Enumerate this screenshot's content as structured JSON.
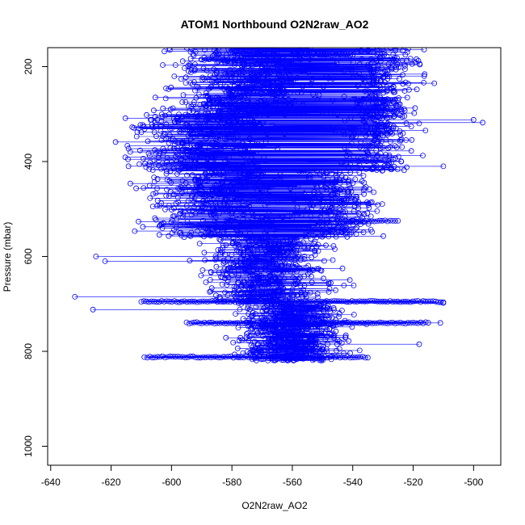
{
  "chart_data": {
    "type": "scatter",
    "title": "ATOM1 Northbound O2N2raw_AO2",
    "xlabel": "O2N2raw_AO2",
    "ylabel": "Pressure (mbar)",
    "xlim": [
      -641,
      -491
    ],
    "ylim": [
      1040,
      160
    ],
    "y_reversed": true,
    "grid": false,
    "legend": "none",
    "x_ticks": [
      -640,
      -620,
      -600,
      -580,
      -560,
      -540,
      -520,
      -500
    ],
    "y_ticks": [
      200,
      400,
      600,
      800,
      1000
    ],
    "series": [
      {
        "color": "#0000ff",
        "marker": "open-circle",
        "line": true,
        "clusters": [
          {
            "y_range": [
              160,
              300
            ],
            "x_center": -575,
            "x_spread": 22,
            "count": 520
          },
          {
            "y_range": [
              160,
              300
            ],
            "x_center": -530,
            "x_spread": 10,
            "count": 220
          },
          {
            "y_range": [
              300,
              420
            ],
            "x_center": -590,
            "x_spread": 22,
            "count": 360
          },
          {
            "y_range": [
              300,
              420
            ],
            "x_center": -532,
            "x_spread": 10,
            "count": 200
          },
          {
            "y_range": [
              420,
              560
            ],
            "x_center": -585,
            "x_spread": 20,
            "count": 380
          },
          {
            "y_range": [
              420,
              560
            ],
            "x_center": -545,
            "x_spread": 12,
            "count": 240
          },
          {
            "y_range": [
              560,
              700
            ],
            "x_center": -568,
            "x_spread": 18,
            "count": 520
          },
          {
            "y_range": [
              700,
              820
            ],
            "x_center": -560,
            "x_spread": 15,
            "count": 620
          }
        ],
        "horizontal_bands": [
          {
            "y": 695,
            "x_range": [
              -610,
              -510
            ]
          },
          {
            "y": 740,
            "x_range": [
              -595,
              -515
            ]
          },
          {
            "y": 812,
            "x_range": [
              -608,
              -535
            ]
          },
          {
            "y": 525,
            "x_range": [
              -545,
              -525
            ]
          },
          {
            "y": 470,
            "x_range": [
              -590,
              -575
            ]
          },
          {
            "y": 320,
            "x_range": [
              -580,
              -570
            ]
          },
          {
            "y": 270,
            "x_range": [
              -540,
              -525
            ]
          },
          {
            "y": 185,
            "x_range": [
              -590,
              -575
            ]
          },
          {
            "y": 175,
            "x_range": [
              -560,
              -540
            ]
          }
        ],
        "outliers": [
          {
            "x": -632,
            "y": 685
          },
          {
            "x": -625,
            "y": 600
          },
          {
            "x": -622,
            "y": 610
          },
          {
            "x": -626,
            "y": 712
          },
          {
            "x": -497,
            "y": 318
          },
          {
            "x": -500,
            "y": 312
          },
          {
            "x": -510,
            "y": 698
          },
          {
            "x": -511,
            "y": 740
          },
          {
            "x": -518,
            "y": 785
          },
          {
            "x": -510,
            "y": 410
          },
          {
            "x": -513,
            "y": 235
          },
          {
            "x": -511,
            "y": 155
          },
          {
            "x": -609,
            "y": 812
          }
        ]
      }
    ]
  }
}
